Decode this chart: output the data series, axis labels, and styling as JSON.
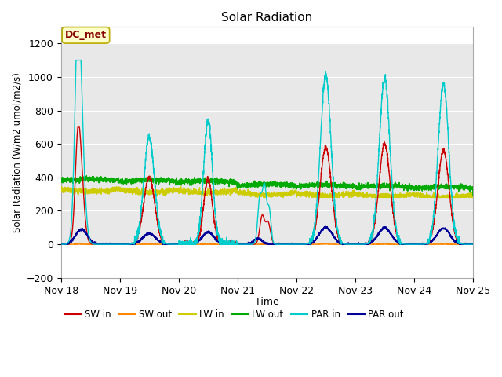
{
  "title": "Solar Radiation",
  "ylabel": "Solar Radiation (W/m2 umol/m2/s)",
  "xlabel": "Time",
  "ylim": [
    -200,
    1300
  ],
  "yticks": [
    -200,
    0,
    200,
    400,
    600,
    800,
    1000,
    1200
  ],
  "xlim": [
    0,
    7
  ],
  "xtick_labels": [
    "Nov 18",
    "Nov 19",
    "Nov 20",
    "Nov 21",
    "Nov 22",
    "Nov 23",
    "Nov 24",
    "Nov 25"
  ],
  "xtick_positions": [
    0,
    1,
    2,
    3,
    4,
    5,
    6,
    7
  ],
  "annotation": "DC_met",
  "fig_background": "#ffffff",
  "plot_background": "#ffffff",
  "shaded_bg": "#e8e8e8",
  "colors": {
    "SW_in": "#cc0000",
    "SW_out": "#ff8800",
    "LW_in": "#cccc00",
    "LW_out": "#00aa00",
    "PAR_in": "#00cccc",
    "PAR_out": "#000099"
  },
  "legend_labels": [
    "SW in",
    "SW out",
    "LW in",
    "LW out",
    "PAR in",
    "PAR out"
  ]
}
